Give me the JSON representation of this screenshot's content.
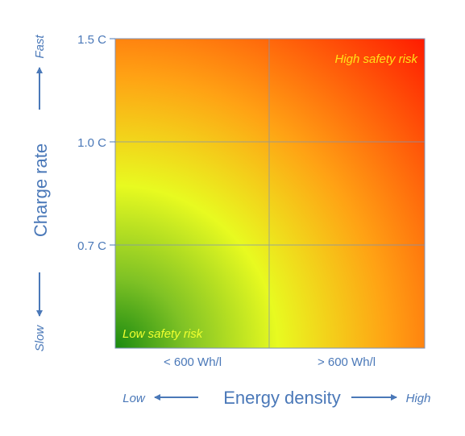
{
  "chart_data": {
    "type": "heatmap",
    "title": "",
    "xlabel": "Energy density",
    "ylabel": "Charge rate",
    "x_categories": [
      "< 600 Wh/l",
      "> 600 Wh/l"
    ],
    "y_ticks": [
      "1.5 C",
      "1.0 C",
      "0.7 C"
    ],
    "x_direction": {
      "low": "Low",
      "high": "High"
    },
    "y_direction": {
      "low": "Slow",
      "high": "Fast"
    },
    "annotations": {
      "high_risk": "High safety risk",
      "low_risk": "Low safety risk"
    },
    "gradient": {
      "low_color": "#1a8a10",
      "mid_color": "#e8fa20",
      "high_color": "#ff1a00"
    },
    "grid": true
  }
}
